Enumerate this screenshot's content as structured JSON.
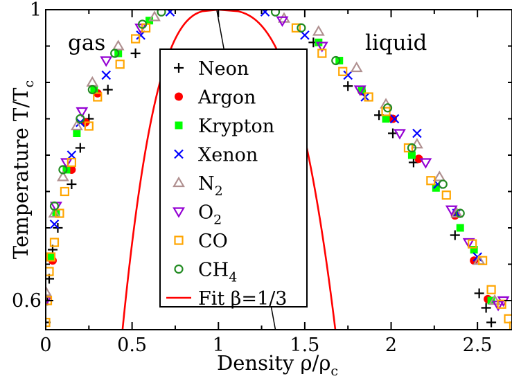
{
  "chart_data": {
    "type": "scatter",
    "xlabel": {
      "main": "Density ρ/ρ",
      "sub": "c"
    },
    "ylabel": {
      "main": "Temperature T/T",
      "sub": "c"
    },
    "xlim": [
      0,
      2.7
    ],
    "ylim": [
      0.56,
      1.0
    ],
    "x_ticks": [
      0,
      0.5,
      1,
      1.5,
      2,
      2.5
    ],
    "x_tick_labels": [
      "0",
      "0.5",
      "1",
      "1.5",
      "2",
      "2.5"
    ],
    "y_ticks": [
      0.6,
      1.0
    ],
    "y_tick_labels": [
      "0.6",
      "1"
    ],
    "y_minor_ticks": [
      0.65,
      0.7,
      0.75,
      0.8,
      0.85,
      0.9,
      0.95
    ],
    "grid": false,
    "legend_position": "center",
    "annotations": [
      {
        "text": "gas",
        "x": 0.12,
        "y": 0.958
      },
      {
        "text": "liquid",
        "x": 1.98,
        "y": 0.958
      }
    ],
    "diameter_line": {
      "x": [
        0.99,
        1.33
      ],
      "y": [
        1.0,
        0.56
      ]
    },
    "fit": {
      "name": "Fit β=1/3",
      "color": "#ff0000",
      "beta": 0.3333,
      "A": 1.78,
      "B": 0.73
    },
    "series": [
      {
        "name": "Neon",
        "marker": "plus",
        "color": "#000000",
        "points": [
          [
            0.0,
            0.57
          ],
          [
            0.01,
            0.6
          ],
          [
            0.02,
            0.63
          ],
          [
            0.04,
            0.67
          ],
          [
            0.07,
            0.7
          ],
          [
            0.15,
            0.76
          ],
          [
            0.2,
            0.81
          ],
          [
            0.25,
            0.85
          ],
          [
            0.36,
            0.89
          ],
          [
            0.52,
            0.94
          ],
          [
            2.58,
            0.57
          ],
          [
            2.55,
            0.59
          ],
          [
            2.51,
            0.61
          ],
          [
            2.37,
            0.69
          ],
          [
            2.13,
            0.79
          ],
          [
            2.01,
            0.83
          ],
          [
            1.93,
            0.855
          ],
          [
            1.75,
            0.895
          ],
          [
            1.55,
            0.955
          ]
        ]
      },
      {
        "name": "Argon",
        "marker": "circle",
        "color": "#ff0000",
        "points": [
          [
            0.04,
            0.655
          ],
          [
            0.15,
            0.78
          ],
          [
            0.23,
            0.845
          ],
          [
            0.3,
            0.885
          ],
          [
            1.83,
            0.888
          ],
          [
            2.01,
            0.85
          ],
          [
            2.16,
            0.795
          ],
          [
            2.37,
            0.717
          ],
          [
            2.48,
            0.655
          ],
          [
            2.56,
            0.602
          ]
        ]
      },
      {
        "name": "Krypton",
        "marker": "square",
        "color": "#00ff00",
        "points": [
          [
            0.03,
            0.66
          ],
          [
            0.06,
            0.72
          ],
          [
            0.12,
            0.78
          ],
          [
            0.18,
            0.83
          ],
          [
            0.28,
            0.89
          ],
          [
            0.42,
            0.94
          ],
          [
            0.6,
            0.985
          ],
          [
            1.58,
            0.955
          ],
          [
            1.7,
            0.93
          ],
          [
            1.83,
            0.89
          ],
          [
            1.97,
            0.85
          ],
          [
            2.12,
            0.8
          ],
          [
            2.26,
            0.755
          ],
          [
            2.4,
            0.7
          ],
          [
            2.48,
            0.67
          ],
          [
            2.58,
            0.6
          ]
        ]
      },
      {
        "name": "Xenon",
        "marker": "x",
        "color": "#0000ff",
        "points": [
          [
            0.05,
            0.705
          ],
          [
            0.15,
            0.8
          ],
          [
            0.2,
            0.845
          ],
          [
            0.35,
            0.91
          ],
          [
            0.55,
            0.965
          ],
          [
            0.72,
            0.997
          ],
          [
            1.27,
            0.997
          ],
          [
            1.5,
            0.965
          ],
          [
            1.75,
            0.91
          ],
          [
            1.85,
            0.88
          ],
          [
            2.02,
            0.85
          ],
          [
            2.15,
            0.83
          ],
          [
            2.27,
            0.76
          ],
          [
            2.38,
            0.72
          ],
          [
            2.5,
            0.66
          ]
        ]
      },
      {
        "name": "N",
        "name_sub": "2",
        "marker": "triangle-up",
        "color": "#b09090",
        "points": [
          [
            0.0,
            0.612
          ],
          [
            0.05,
            0.72
          ],
          [
            0.1,
            0.77
          ],
          [
            0.18,
            0.84
          ],
          [
            0.27,
            0.9
          ],
          [
            0.42,
            0.95
          ],
          [
            0.63,
            0.99
          ],
          [
            1.38,
            0.988
          ],
          [
            1.58,
            0.97
          ],
          [
            1.8,
            0.92
          ],
          [
            1.97,
            0.87
          ],
          [
            2.15,
            0.815
          ],
          [
            2.28,
            0.77
          ],
          [
            2.38,
            0.72
          ],
          [
            2.51,
            0.655
          ],
          [
            2.6,
            0.6
          ]
        ]
      },
      {
        "name": "O",
        "name_sub": "2",
        "marker": "triangle-down",
        "color": "#9400d3",
        "points": [
          [
            0.0,
            0.6
          ],
          [
            0.06,
            0.73
          ],
          [
            0.12,
            0.79
          ],
          [
            0.21,
            0.86
          ],
          [
            0.35,
            0.93
          ],
          [
            0.55,
            0.975
          ],
          [
            1.37,
            0.985
          ],
          [
            1.6,
            0.95
          ],
          [
            1.82,
            0.89
          ],
          [
            2.05,
            0.83
          ],
          [
            2.2,
            0.79
          ],
          [
            2.35,
            0.725
          ],
          [
            2.45,
            0.68
          ],
          [
            2.62,
            0.594
          ],
          [
            2.65,
            0.6
          ]
        ]
      },
      {
        "name": "CO",
        "marker": "square-open",
        "color": "#ffa500",
        "points": [
          [
            0.0,
            0.57
          ],
          [
            0.01,
            0.6
          ],
          [
            0.02,
            0.64
          ],
          [
            0.03,
            0.66
          ],
          [
            0.05,
            0.68
          ],
          [
            0.08,
            0.72
          ],
          [
            0.11,
            0.75
          ],
          [
            0.15,
            0.79
          ],
          [
            0.25,
            0.84
          ],
          [
            0.3,
            0.88
          ],
          [
            0.43,
            0.925
          ],
          [
            0.52,
            0.96
          ],
          [
            0.58,
            0.975
          ],
          [
            1.45,
            0.975
          ],
          [
            1.6,
            0.94
          ],
          [
            1.72,
            0.915
          ],
          [
            1.87,
            0.88
          ],
          [
            1.97,
            0.86
          ],
          [
            2.1,
            0.81
          ],
          [
            2.23,
            0.765
          ],
          [
            2.32,
            0.745
          ],
          [
            2.47,
            0.678
          ],
          [
            2.53,
            0.655
          ],
          [
            2.58,
            0.615
          ],
          [
            2.64,
            0.595
          ],
          [
            2.68,
            0.575
          ],
          [
            2.71,
            0.565
          ]
        ]
      },
      {
        "name": "CH",
        "name_sub": "4",
        "marker": "circle-open",
        "color": "#228b22",
        "points": [
          [
            0.05,
            0.73
          ],
          [
            0.1,
            0.78
          ],
          [
            0.2,
            0.85
          ],
          [
            0.27,
            0.89
          ],
          [
            0.4,
            0.94
          ],
          [
            0.56,
            0.98
          ],
          [
            0.67,
            0.997
          ],
          [
            1.33,
            0.997
          ],
          [
            1.48,
            0.975
          ],
          [
            1.68,
            0.93
          ],
          [
            1.98,
            0.865
          ],
          [
            2.12,
            0.81
          ],
          [
            2.3,
            0.76
          ],
          [
            2.4,
            0.72
          ]
        ]
      }
    ]
  }
}
